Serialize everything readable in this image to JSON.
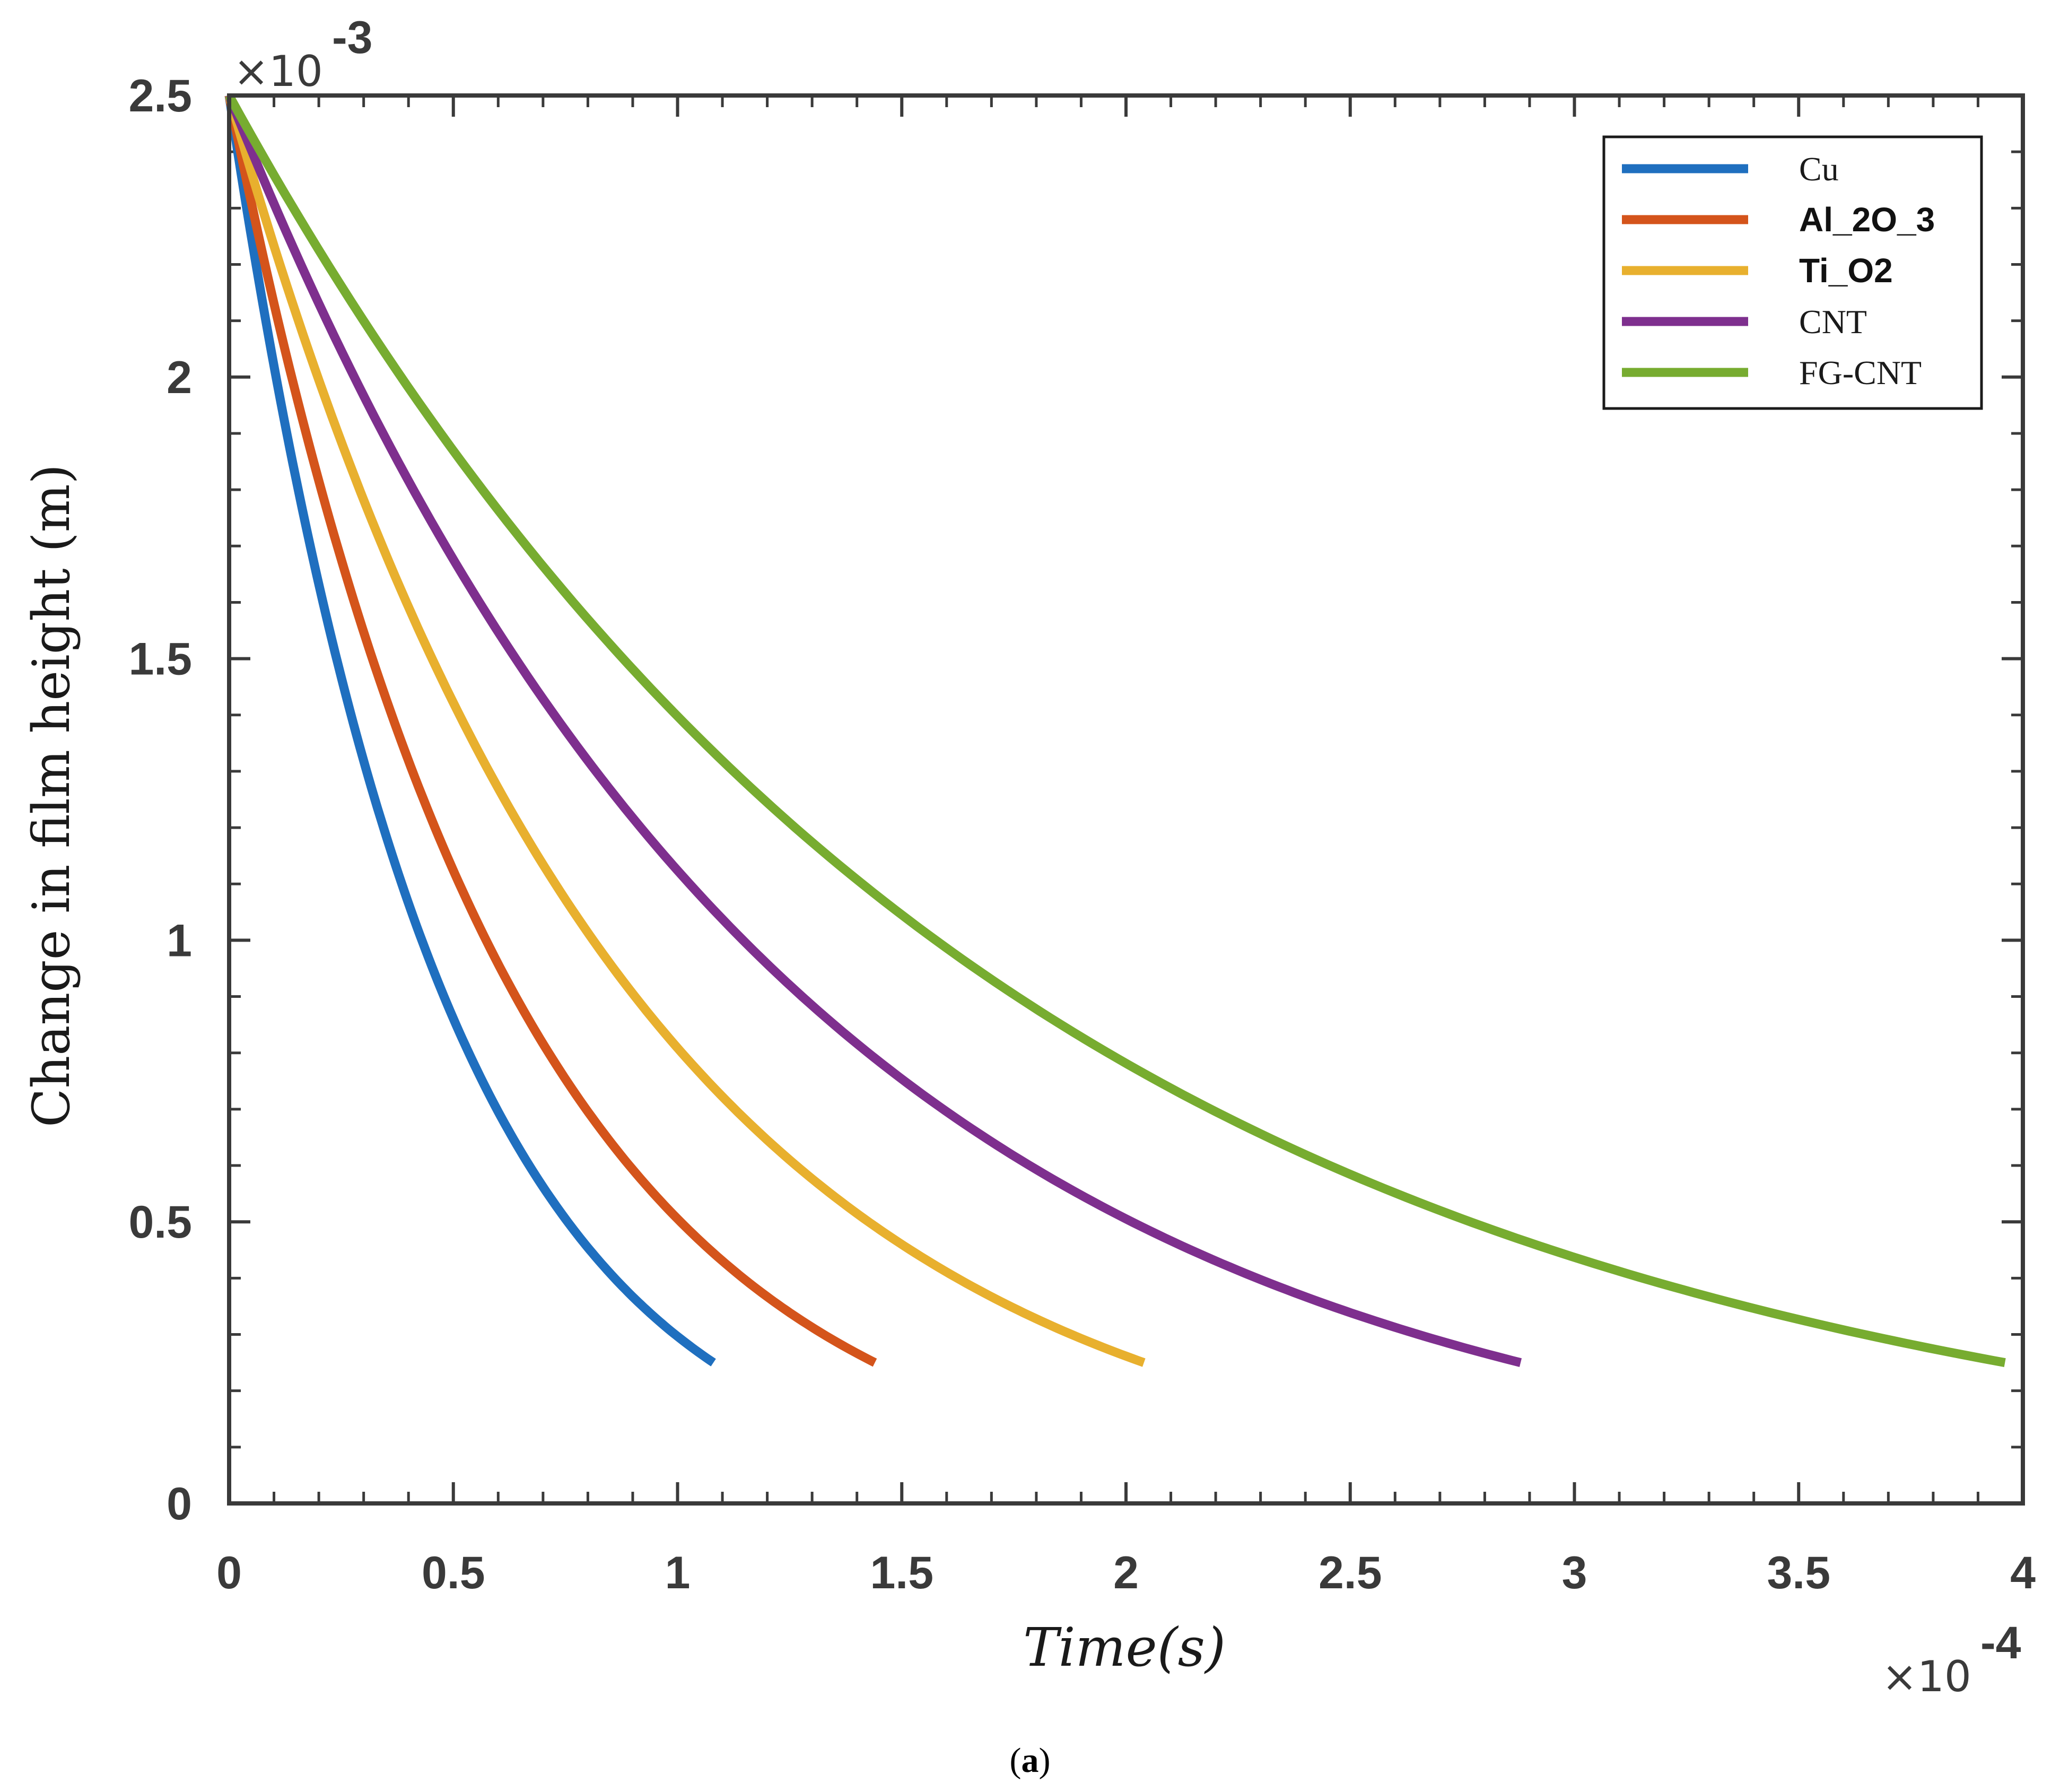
{
  "chart_data": {
    "type": "line",
    "title": "",
    "xlabel": "Time(s)",
    "ylabel": "Change in film height (m)",
    "x_exponent_label": "-4",
    "y_exponent_label": "-3",
    "exp_times": "×10",
    "xlim": [
      0,
      4
    ],
    "ylim": [
      0,
      2.5
    ],
    "x_ticks": [
      0,
      0.5,
      1,
      1.5,
      2,
      2.5,
      3,
      3.5,
      4
    ],
    "x_tick_labels": [
      "0",
      "0.5",
      "1",
      "1.5",
      "2",
      "2.5",
      "3",
      "3.5",
      "4"
    ],
    "y_ticks": [
      0,
      0.5,
      1,
      1.5,
      2,
      2.5
    ],
    "y_tick_labels": [
      "0",
      "0.5",
      "1",
      "1.5",
      "2",
      "2.5"
    ],
    "legend_position": "top-right",
    "series": [
      {
        "name": "Cu",
        "color": "#1f6fbf",
        "legend_style": "serif",
        "y0": 2.5,
        "y_end": 0.25,
        "x_end": 1.08
      },
      {
        "name": "Al_2O_3",
        "color": "#d4541b",
        "legend_style": "bold",
        "y0": 2.5,
        "y_end": 0.25,
        "x_end": 1.44
      },
      {
        "name": "Ti_O2",
        "color": "#e8b02e",
        "legend_style": "bold",
        "y0": 2.5,
        "y_end": 0.25,
        "x_end": 2.04
      },
      {
        "name": "CNT",
        "color": "#7e2f8e",
        "legend_style": "serif",
        "y0": 2.5,
        "y_end": 0.25,
        "x_end": 2.88
      },
      {
        "name": "FG-CNT",
        "color": "#77ac30",
        "legend_style": "serif",
        "y0": 2.5,
        "y_end": 0.25,
        "x_end": 3.96
      }
    ]
  },
  "caption": {
    "open": "(",
    "letter": "a",
    "close": ")"
  }
}
